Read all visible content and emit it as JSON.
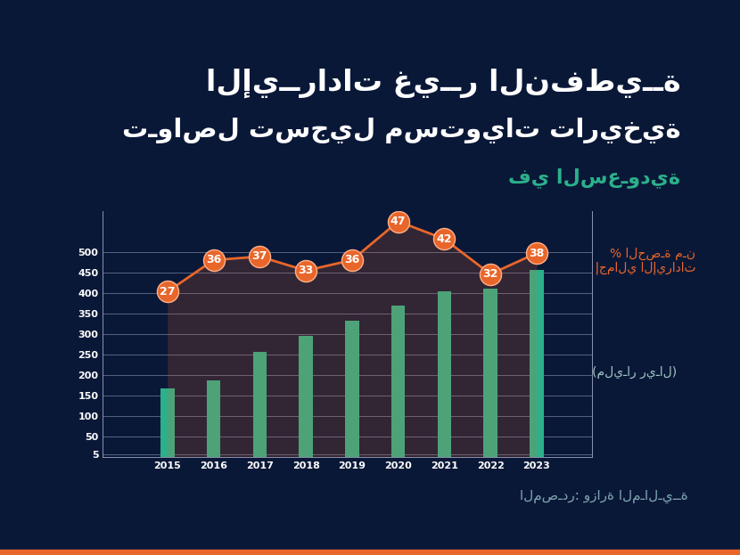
{
  "chart_data": {
    "type": "bar",
    "title": "الإيــرادات غيــر النفطيــة",
    "subtitle": [
      "تـواصل تسجيل مستويات تاريخية",
      "في السعـودية"
    ],
    "annotations": [
      "المصـدر: وزارة المـالـيــة"
    ],
    "categories": [
      "2015",
      "2016",
      "2017",
      "2018",
      "2019",
      "2020",
      "2021",
      "2022",
      "2023"
    ],
    "series": [
      {
        "name": "(مليـار ريـال)",
        "type": "bar",
        "color": "#2bb08a",
        "values": [
          166,
          186,
          256,
          294,
          332,
          369,
          403,
          411,
          457
        ]
      },
      {
        "name": "% الحصـة مـن\nإجمالي الإيرادات",
        "type": "line",
        "axis": "y2",
        "color": "#e8662a",
        "marker": "o",
        "line_style": "solid",
        "data_labels": true,
        "values": [
          27,
          36,
          37,
          33,
          36,
          47,
          42,
          32,
          38
        ]
      }
    ],
    "ylim": [
      0,
      600
    ],
    "yticks": [
      5,
      50,
      100,
      150,
      200,
      250,
      300,
      350,
      400,
      450,
      500
    ],
    "y2lim": [
      -20,
      50
    ],
    "y2ticks": [],
    "grid": true
  }
}
